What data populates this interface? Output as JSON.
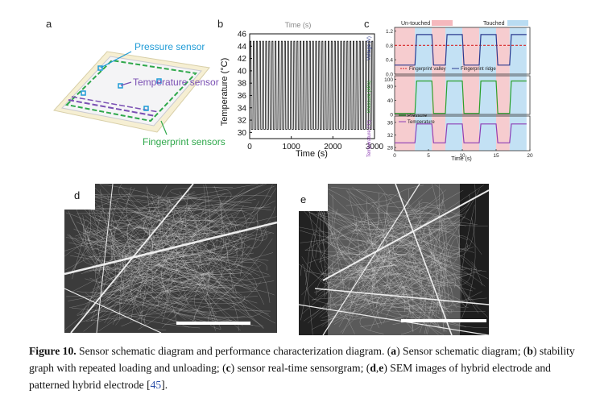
{
  "panel_a": {
    "label": "a",
    "pressure_label": "Pressure sensor",
    "temperature_label": "Temperature sensor",
    "fingerprint_label": "Fingerprint sensors",
    "colors": {
      "pressure": "#1f9bd6",
      "temperature": "#7a4fb3",
      "fingerprint": "#2fa84b",
      "substrate": "#f2e9c8"
    }
  },
  "panel_b": {
    "label": "b",
    "top_text": "Time (s)",
    "chart_data": {
      "type": "line",
      "xlabel": "Time (s)",
      "ylabel": "Temperature (°C)",
      "xlim": [
        0,
        3000
      ],
      "ylim": [
        29,
        46
      ],
      "xticks": [
        "0",
        "1000",
        "2000",
        "3000"
      ],
      "yticks": [
        "30",
        "32",
        "34",
        "36",
        "38",
        "40",
        "42",
        "44",
        "46"
      ],
      "cycles": 40,
      "low": 30.5,
      "high": 44.8
    }
  },
  "panel_c": {
    "label": "c",
    "legend_untouched": "Un-touched",
    "legend_touched": "Touched",
    "chart_data": {
      "type": "line",
      "xlabel": "Time (s)",
      "xticks": [
        "0",
        "5",
        "10",
        "15",
        "20"
      ],
      "xlim": [
        0,
        20
      ],
      "states": [
        {
          "state": "untouched",
          "from": 0,
          "to": 3
        },
        {
          "state": "touched",
          "from": 3,
          "to": 5.5
        },
        {
          "state": "untouched",
          "from": 5.5,
          "to": 7.5
        },
        {
          "state": "touched",
          "from": 7.5,
          "to": 10
        },
        {
          "state": "untouched",
          "from": 10,
          "to": 12.5
        },
        {
          "state": "touched",
          "from": 12.5,
          "to": 15
        },
        {
          "state": "untouched",
          "from": 15,
          "to": 17
        },
        {
          "state": "touched",
          "from": 17,
          "to": 19.5
        }
      ],
      "subplots": [
        {
          "ylabel": "Voltage (V)",
          "yticks": [
            "0.0",
            "0.4",
            "0.8",
            "1.2"
          ],
          "ylim": [
            0,
            1.3
          ],
          "series": [
            {
              "name": "Fingerprint valley",
              "color": "#d62728",
              "style": "dashed",
              "low": 0.8,
              "high": 0.8
            },
            {
              "name": "Fingerprint ridge",
              "color": "#2b3a8f",
              "style": "solid",
              "low": 0.25,
              "high": 1.1
            }
          ]
        },
        {
          "ylabel": "Pressure (kPa)",
          "yticks": [
            "0",
            "40",
            "80",
            "100"
          ],
          "ylim": [
            0,
            110
          ],
          "series": [
            {
              "name": "Pressure",
              "color": "#2ca02c",
              "style": "solid",
              "low": 3,
              "high": 95
            }
          ]
        },
        {
          "ylabel": "Temperature (°C)",
          "yticks": [
            "28",
            "32",
            "36"
          ],
          "ylim": [
            27,
            38
          ],
          "series": [
            {
              "name": "Temperature",
              "color": "#8e3fb5",
              "style": "solid",
              "low": 29.5,
              "high": 35.5
            }
          ]
        }
      ]
    }
  },
  "panel_d": {
    "label": "d"
  },
  "panel_e": {
    "label": "e"
  },
  "caption": {
    "figure_label": "Figure 10.",
    "text1": " Sensor schematic diagram and performance characterization diagram. (",
    "a": "a",
    "text2": ") Sensor schematic diagram; (",
    "b": "b",
    "text3": ") stability graph with repeated loading and unloading; (",
    "c": "c",
    "text4": ") sensor real-time sensorgram; (",
    "d": "d",
    "comma": ",",
    "e": "e",
    "text5": ") SEM images of hybrid electrode and patterned hybrid electrode [",
    "ref": "45",
    "text6": "]."
  }
}
